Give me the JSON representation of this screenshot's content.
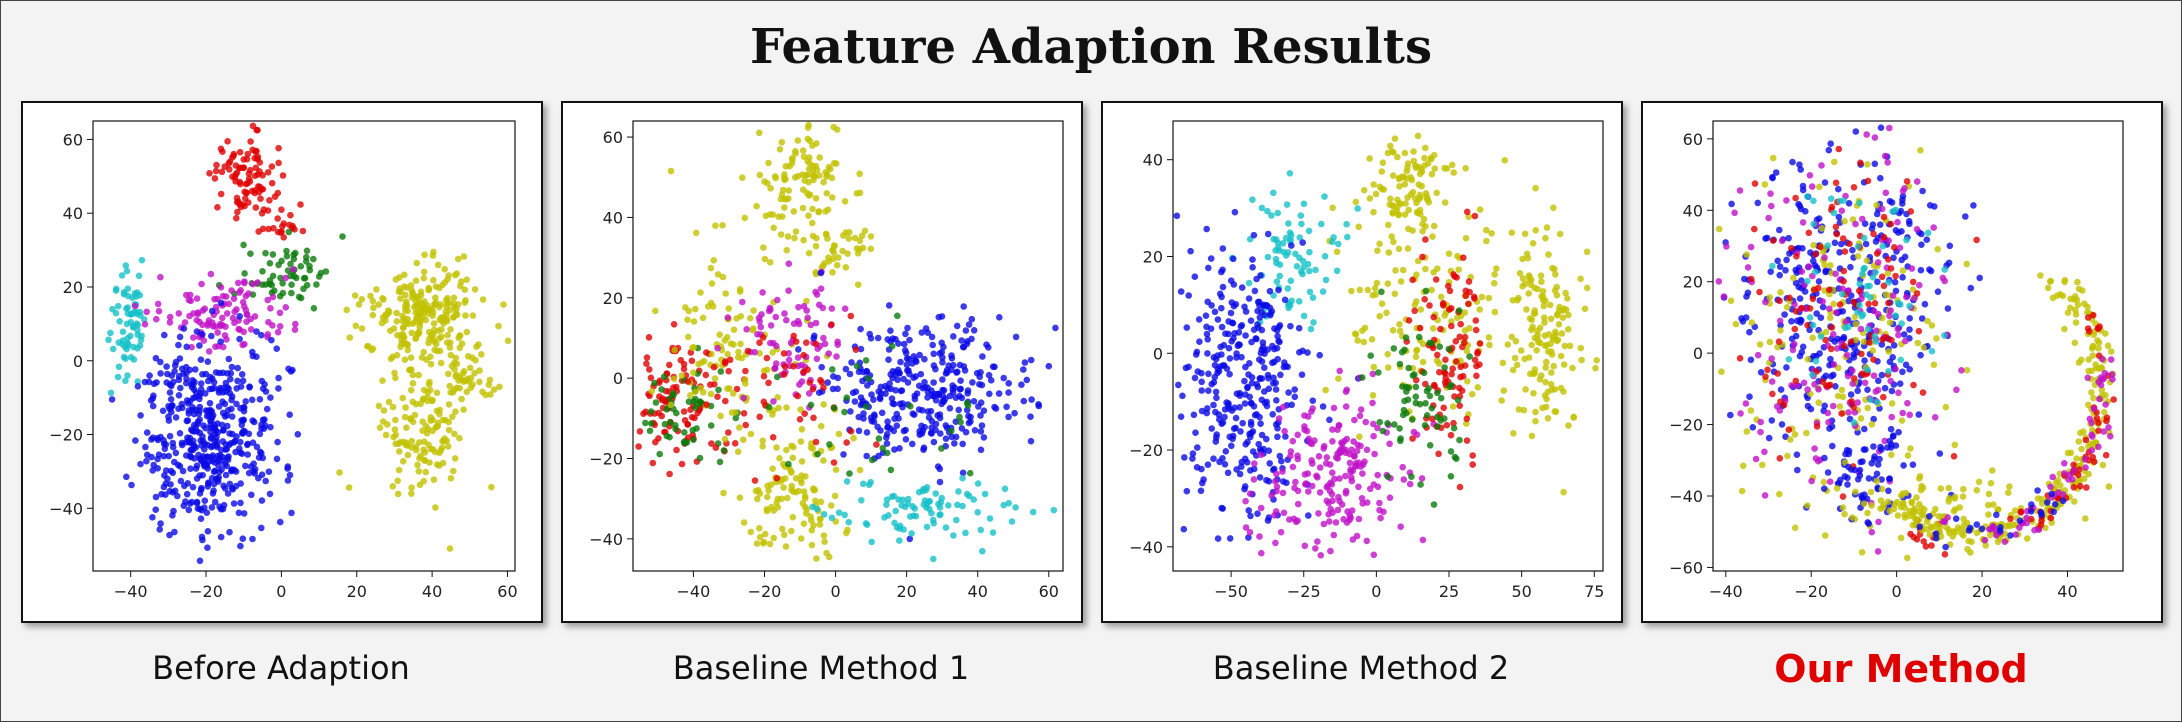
{
  "title": "Feature Adaption Results",
  "colors": {
    "red": "#e00000",
    "green": "#0a7a0a",
    "cyan": "#15c0c8",
    "magenta": "#c010c8",
    "blue": "#0a0ae6",
    "olive": "#c2c200"
  },
  "chart_data": [
    {
      "type": "scatter",
      "caption": "Before Adaption",
      "highlight": false,
      "xlim": [
        -50,
        62
      ],
      "ylim": [
        -57,
        65
      ],
      "xticks": [
        -40,
        -20,
        0,
        20,
        40,
        60
      ],
      "yticks": [
        -40,
        -20,
        0,
        20,
        40,
        60
      ],
      "clusters": [
        {
          "color": "red",
          "cx": -10,
          "cy": 50,
          "sx": 4,
          "sy": 6,
          "n": 90
        },
        {
          "color": "red",
          "cx": 0,
          "cy": 37,
          "sx": 3,
          "sy": 2,
          "n": 20
        },
        {
          "color": "green",
          "cx": 0,
          "cy": 24,
          "sx": 6,
          "sy": 4,
          "n": 60
        },
        {
          "color": "cyan",
          "cx": -40,
          "cy": 10,
          "sx": 3,
          "sy": 8,
          "n": 70
        },
        {
          "color": "magenta",
          "cx": -15,
          "cy": 13,
          "sx": 9,
          "sy": 5,
          "n": 110
        },
        {
          "color": "blue",
          "cx": -20,
          "cy": -20,
          "sx": 9,
          "sy": 13,
          "n": 480
        },
        {
          "color": "olive",
          "cx": 38,
          "cy": 12,
          "sx": 8,
          "sy": 7,
          "n": 230
        },
        {
          "color": "olive",
          "cx": 38,
          "cy": -18,
          "sx": 6,
          "sy": 10,
          "n": 140
        },
        {
          "color": "olive",
          "cx": 50,
          "cy": -7,
          "sx": 3,
          "sy": 3,
          "n": 30
        }
      ]
    },
    {
      "type": "scatter",
      "caption": "Baseline Method 1",
      "highlight": false,
      "xlim": [
        -57,
        64
      ],
      "ylim": [
        -48,
        64
      ],
      "xticks": [
        -40,
        -20,
        0,
        20,
        40,
        60
      ],
      "yticks": [
        -40,
        -20,
        0,
        20,
        40,
        60
      ],
      "clusters": [
        {
          "color": "olive",
          "cx": -10,
          "cy": 48,
          "sx": 7,
          "sy": 7,
          "n": 110
        },
        {
          "color": "olive",
          "cx": 0,
          "cy": 32,
          "sx": 7,
          "sy": 4,
          "n": 40
        },
        {
          "color": "red",
          "cx": -45,
          "cy": -5,
          "sx": 6,
          "sy": 8,
          "n": 100
        },
        {
          "color": "green",
          "cx": -42,
          "cy": -8,
          "sx": 7,
          "sy": 7,
          "n": 55
        },
        {
          "color": "olive",
          "cx": -30,
          "cy": 5,
          "sx": 10,
          "sy": 14,
          "n": 110
        },
        {
          "color": "magenta",
          "cx": -12,
          "cy": 10,
          "sx": 7,
          "sy": 7,
          "n": 80
        },
        {
          "color": "blue",
          "cx": 25,
          "cy": -3,
          "sx": 14,
          "sy": 9,
          "n": 330
        },
        {
          "color": "olive",
          "cx": -12,
          "cy": -28,
          "sx": 7,
          "sy": 9,
          "n": 120
        },
        {
          "color": "cyan",
          "cx": 25,
          "cy": -33,
          "sx": 14,
          "sy": 4,
          "n": 90
        },
        {
          "color": "red",
          "cx": -18,
          "cy": 0,
          "sx": 14,
          "sy": 10,
          "n": 60
        },
        {
          "color": "green",
          "cx": 10,
          "cy": -10,
          "sx": 16,
          "sy": 12,
          "n": 30
        }
      ]
    },
    {
      "type": "scatter",
      "caption": "Baseline Method 2",
      "highlight": false,
      "xlim": [
        -70,
        78
      ],
      "ylim": [
        -45,
        48
      ],
      "xticks": [
        -50,
        -25,
        0,
        25,
        50,
        75
      ],
      "yticks": [
        -40,
        -20,
        0,
        20,
        40
      ],
      "clusters": [
        {
          "color": "olive",
          "cx": 10,
          "cy": 35,
          "sx": 6,
          "sy": 5,
          "n": 90
        },
        {
          "color": "olive",
          "cx": 58,
          "cy": 5,
          "sx": 7,
          "sy": 10,
          "n": 140
        },
        {
          "color": "olive",
          "cx": 20,
          "cy": 10,
          "sx": 16,
          "sy": 14,
          "n": 160
        },
        {
          "color": "cyan",
          "cx": -30,
          "cy": 20,
          "sx": 8,
          "sy": 7,
          "n": 80
        },
        {
          "color": "blue",
          "cx": -45,
          "cy": -5,
          "sx": 11,
          "sy": 14,
          "n": 330
        },
        {
          "color": "magenta",
          "cx": -15,
          "cy": -25,
          "sx": 14,
          "sy": 8,
          "n": 200
        },
        {
          "color": "red",
          "cx": 25,
          "cy": 0,
          "sx": 6,
          "sy": 11,
          "n": 100
        },
        {
          "color": "green",
          "cx": 15,
          "cy": -8,
          "sx": 8,
          "sy": 9,
          "n": 70
        }
      ]
    },
    {
      "type": "scatter",
      "caption": "Our Method",
      "highlight": true,
      "xlim": [
        -43,
        53
      ],
      "ylim": [
        -61,
        65
      ],
      "xticks": [
        -40,
        -20,
        0,
        20,
        40
      ],
      "yticks": [
        -60,
        -40,
        -20,
        0,
        20,
        40,
        60
      ],
      "clusters": [
        {
          "color": "blue",
          "cx": -12,
          "cy": 15,
          "sx": 12,
          "sy": 22,
          "n": 360
        },
        {
          "color": "olive",
          "cx": -12,
          "cy": 5,
          "sx": 14,
          "sy": 28,
          "n": 150
        },
        {
          "color": "magenta",
          "cx": -12,
          "cy": 5,
          "sx": 13,
          "sy": 25,
          "n": 160
        },
        {
          "color": "red",
          "cx": -12,
          "cy": 10,
          "sx": 13,
          "sy": 25,
          "n": 110
        },
        {
          "color": "cyan",
          "cx": -8,
          "cy": 15,
          "sx": 10,
          "sy": 16,
          "n": 60
        },
        {
          "color": "blue",
          "cx": -8,
          "cy": -35,
          "sx": 6,
          "sy": 7,
          "n": 60
        },
        {
          "color": "olive",
          "cx": 12,
          "cy": -42,
          "sx": 10,
          "sy": 6,
          "n": 60
        },
        {
          "color": "red",
          "cx": 7,
          "cy": -52,
          "sx": 2,
          "sy": 2,
          "n": 12
        },
        {
          "color": "olive",
          "arc": true,
          "cx": 18,
          "cy": -10,
          "rx": 30,
          "ry": 40,
          "a0": -2.4,
          "a1": 0.9,
          "n": 260
        },
        {
          "color": "red",
          "arc": true,
          "cx": 18,
          "cy": -10,
          "rx": 31,
          "ry": 40,
          "a0": -1.2,
          "a1": 0.5,
          "n": 50
        },
        {
          "color": "magenta",
          "arc": true,
          "cx": 18,
          "cy": -10,
          "rx": 30,
          "ry": 40,
          "a0": -1.9,
          "a1": 0.3,
          "n": 60
        },
        {
          "color": "blue",
          "arc": true,
          "cx": 18,
          "cy": -10,
          "rx": 30,
          "ry": 40,
          "a0": -2.0,
          "a1": -0.8,
          "n": 25
        }
      ]
    }
  ]
}
